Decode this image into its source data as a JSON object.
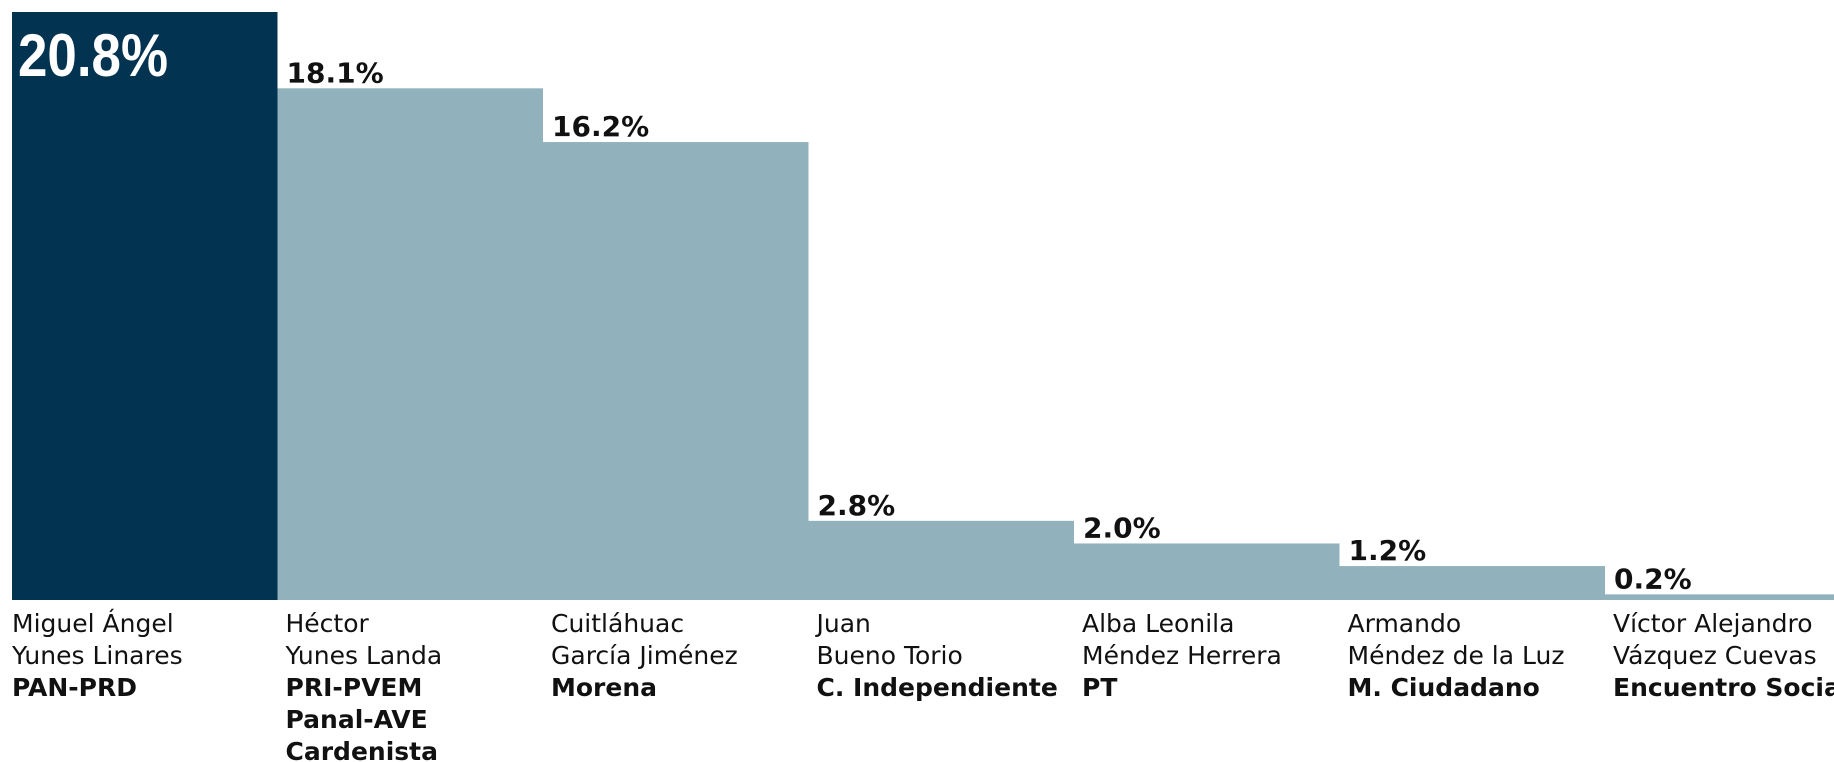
{
  "chart_data": {
    "type": "bar",
    "categories": [
      [
        "Miguel Ángel",
        "Yunes Linares"
      ],
      [
        "Héctor",
        "Yunes Landa"
      ],
      [
        "Cuitláhuac",
        "García Jiménez"
      ],
      [
        "Juan",
        "Bueno Torio"
      ],
      [
        "Alba Leonila",
        "Méndez Herrera"
      ],
      [
        "Armando",
        "Méndez de la Luz"
      ],
      [
        "Víctor Alejandro",
        "Vázquez Cuevas"
      ]
    ],
    "parties": [
      [
        "PAN-PRD"
      ],
      [
        "PRI-PVEM",
        "Panal-AVE",
        "Cardenista"
      ],
      [
        "Morena"
      ],
      [
        "C. Independiente"
      ],
      [
        "PT"
      ],
      [
        "M. Ciudadano"
      ],
      [
        "Encuentro Social"
      ]
    ],
    "values": [
      20.8,
      18.1,
      16.2,
      2.8,
      2.0,
      1.2,
      0.2
    ],
    "value_labels": [
      "20.8%",
      "18.1%",
      "16.2%",
      "2.8%",
      "2.0%",
      "1.2%",
      "0.2%"
    ],
    "colors": [
      "#023452",
      "#91b1bc",
      "#91b1bc",
      "#91b1bc",
      "#91b1bc",
      "#91b1bc",
      "#91b1bc"
    ],
    "ylim": [
      0,
      20.8
    ]
  }
}
